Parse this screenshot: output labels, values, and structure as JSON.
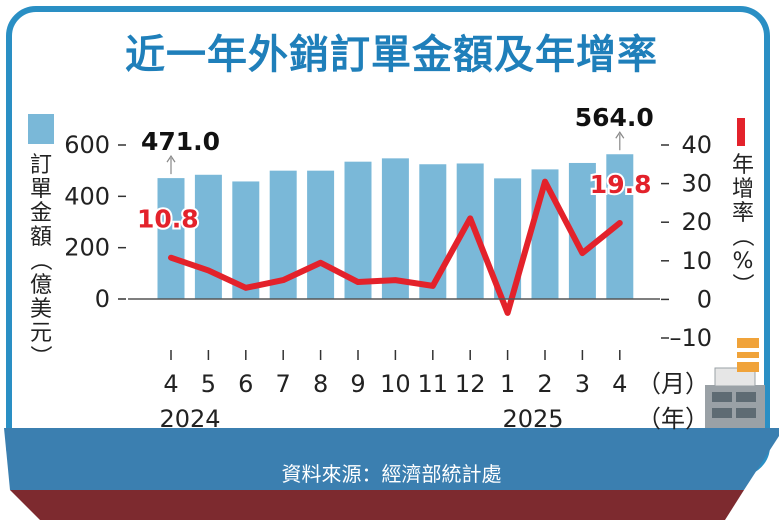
{
  "title": "近一年外銷訂單金額及年增率",
  "source": "資料來源：經濟部統計處",
  "colors": {
    "bar": "#7ab8d8",
    "line": "#e3222b",
    "title": "#1f7fba",
    "frame": "#2a8fc4",
    "hull_top": "#3b7fb0",
    "hull_bottom": "#7d2a2f"
  },
  "chart_data": {
    "type": "bar+line",
    "categories": [
      "4",
      "5",
      "6",
      "7",
      "8",
      "9",
      "10",
      "11",
      "12",
      "1",
      "2",
      "3",
      "4"
    ],
    "years": [
      "2024",
      "2025"
    ],
    "x_unit_month": "（月）",
    "x_unit_year": "（年）",
    "left_axis": {
      "label": "訂單金額（億美元）",
      "ticks": [
        0,
        200,
        400,
        600
      ],
      "ylim": [
        0,
        600
      ]
    },
    "right_axis": {
      "label": "年增率（%）",
      "ticks": [
        -10,
        0,
        10,
        20,
        30,
        40
      ],
      "ylim": [
        -10,
        40
      ]
    },
    "series": [
      {
        "name": "訂單金額（億美元）",
        "kind": "bar",
        "values": [
          471.0,
          484,
          458,
          500,
          500,
          535,
          548,
          525,
          528,
          470,
          505,
          530,
          564.0
        ]
      },
      {
        "name": "年增率（%）",
        "kind": "line",
        "values": [
          10.8,
          7.5,
          3.0,
          5.0,
          9.5,
          4.5,
          5.0,
          3.5,
          21.0,
          -3.5,
          30.5,
          12.0,
          19.8
        ]
      }
    ],
    "annotations": [
      {
        "text": "471.0",
        "series": "bar",
        "index": 0
      },
      {
        "text": "564.0",
        "series": "bar",
        "index": 12
      },
      {
        "text": "10.8",
        "series": "line",
        "index": 0
      },
      {
        "text": "19.8",
        "series": "line",
        "index": 12
      }
    ]
  }
}
